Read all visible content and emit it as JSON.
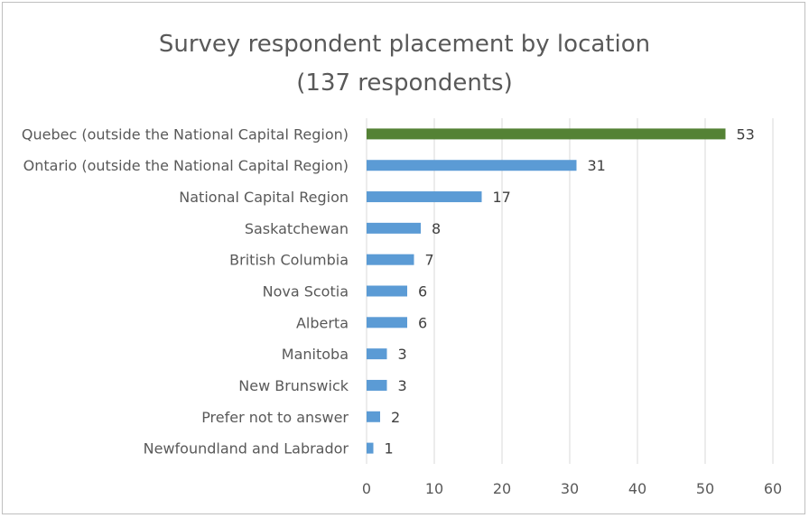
{
  "chart_data": {
    "type": "bar",
    "orientation": "horizontal",
    "title_line1": "Survey respondent placement by location",
    "title_line2": "(137 respondents)",
    "categories": [
      "Quebec (outside the National Capital Region)",
      "Ontario (outside the National Capital Region)",
      "National Capital Region",
      "Saskatchewan",
      "British Columbia",
      "Nova Scotia",
      "Alberta",
      "Manitoba",
      "New Brunswick",
      "Prefer not to answer",
      "Newfoundland and Labrador"
    ],
    "values": [
      53,
      31,
      17,
      8,
      7,
      6,
      6,
      3,
      3,
      2,
      1
    ],
    "bar_colors": [
      "#548235",
      "#5b9bd5",
      "#5b9bd5",
      "#5b9bd5",
      "#5b9bd5",
      "#5b9bd5",
      "#5b9bd5",
      "#5b9bd5",
      "#5b9bd5",
      "#5b9bd5",
      "#5b9bd5"
    ],
    "xlim": [
      0,
      60
    ],
    "xticks": [
      0,
      10,
      20,
      30,
      40,
      50,
      60
    ],
    "grid": "vertical",
    "legend": "none"
  }
}
